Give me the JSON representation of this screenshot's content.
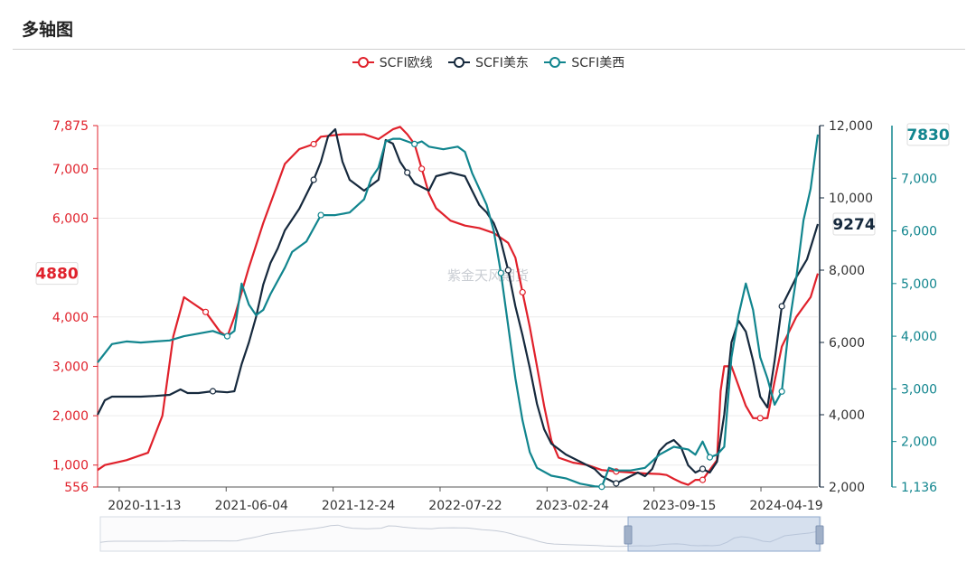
{
  "page": {
    "title": "多轴图"
  },
  "colors": {
    "eu": "#e0212b",
    "us_east": "#16293d",
    "us_west": "#11858e"
  },
  "watermark": "紫金天风期货",
  "chart_data": {
    "type": "line",
    "x_ticks": [
      "2020-11-13",
      "2021-06-04",
      "2021-12-24",
      "2022-07-22",
      "2023-02-24",
      "2023-09-15",
      "2024-04-19"
    ],
    "axes": [
      {
        "id": "eu",
        "ticks": [
          "556",
          "1,000",
          "2,000",
          "3,000",
          "4,000",
          "6,000",
          "7,000",
          "7,875"
        ],
        "min": 556,
        "max": 7875,
        "current": "4880"
      },
      {
        "id": "us_east",
        "ticks": [
          "2,000",
          "4,000",
          "6,000",
          "8,000",
          "10,000",
          "12,000"
        ],
        "min": 2000,
        "max": 12000,
        "current": "9274"
      },
      {
        "id": "us_west",
        "ticks": [
          "1,136",
          "2,000",
          "3,000",
          "4,000",
          "5,000",
          "6,000",
          "7,000"
        ],
        "min": 1136,
        "max": 8000,
        "current": "7830"
      }
    ],
    "series": [
      {
        "name": "SCFI欧线",
        "axis": "eu",
        "points": [
          [
            0,
            900
          ],
          [
            0.01,
            1000
          ],
          [
            0.04,
            1100
          ],
          [
            0.07,
            1250
          ],
          [
            0.09,
            2000
          ],
          [
            0.105,
            3600
          ],
          [
            0.12,
            4400
          ],
          [
            0.13,
            4300
          ],
          [
            0.15,
            4100
          ],
          [
            0.17,
            3700
          ],
          [
            0.18,
            3600
          ],
          [
            0.19,
            4000
          ],
          [
            0.21,
            5000
          ],
          [
            0.23,
            5900
          ],
          [
            0.245,
            6500
          ],
          [
            0.26,
            7100
          ],
          [
            0.28,
            7400
          ],
          [
            0.3,
            7500
          ],
          [
            0.31,
            7650
          ],
          [
            0.34,
            7700
          ],
          [
            0.37,
            7700
          ],
          [
            0.39,
            7600
          ],
          [
            0.41,
            7800
          ],
          [
            0.42,
            7850
          ],
          [
            0.43,
            7700
          ],
          [
            0.44,
            7500
          ],
          [
            0.45,
            7000
          ],
          [
            0.46,
            6500
          ],
          [
            0.47,
            6200
          ],
          [
            0.49,
            5950
          ],
          [
            0.51,
            5850
          ],
          [
            0.53,
            5800
          ],
          [
            0.55,
            5700
          ],
          [
            0.57,
            5500
          ],
          [
            0.58,
            5200
          ],
          [
            0.59,
            4500
          ],
          [
            0.6,
            3800
          ],
          [
            0.61,
            3000
          ],
          [
            0.62,
            2200
          ],
          [
            0.63,
            1500
          ],
          [
            0.64,
            1150
          ],
          [
            0.66,
            1050
          ],
          [
            0.68,
            1000
          ],
          [
            0.7,
            900
          ],
          [
            0.72,
            870
          ],
          [
            0.74,
            850
          ],
          [
            0.76,
            830
          ],
          [
            0.78,
            820
          ],
          [
            0.79,
            800
          ],
          [
            0.8,
            720
          ],
          [
            0.81,
            650
          ],
          [
            0.82,
            600
          ],
          [
            0.83,
            700
          ],
          [
            0.84,
            700
          ],
          [
            0.85,
            900
          ],
          [
            0.86,
            1100
          ],
          [
            0.865,
            2500
          ],
          [
            0.87,
            3000
          ],
          [
            0.88,
            3000
          ],
          [
            0.89,
            2600
          ],
          [
            0.9,
            2200
          ],
          [
            0.91,
            1950
          ],
          [
            0.92,
            1950
          ],
          [
            0.93,
            1950
          ],
          [
            0.94,
            2700
          ],
          [
            0.95,
            3400
          ],
          [
            0.97,
            4000
          ],
          [
            0.99,
            4400
          ],
          [
            1,
            4880
          ]
        ]
      },
      {
        "name": "SCFI美东",
        "axis": "us_east",
        "points": [
          [
            0,
            4000
          ],
          [
            0.01,
            4400
          ],
          [
            0.02,
            4500
          ],
          [
            0.04,
            4500
          ],
          [
            0.06,
            4500
          ],
          [
            0.08,
            4520
          ],
          [
            0.1,
            4550
          ],
          [
            0.115,
            4700
          ],
          [
            0.125,
            4600
          ],
          [
            0.14,
            4600
          ],
          [
            0.16,
            4650
          ],
          [
            0.18,
            4620
          ],
          [
            0.19,
            4650
          ],
          [
            0.2,
            5400
          ],
          [
            0.21,
            6000
          ],
          [
            0.22,
            6700
          ],
          [
            0.23,
            7600
          ],
          [
            0.24,
            8200
          ],
          [
            0.25,
            8600
          ],
          [
            0.26,
            9100
          ],
          [
            0.28,
            9700
          ],
          [
            0.3,
            10500
          ],
          [
            0.31,
            11000
          ],
          [
            0.32,
            11700
          ],
          [
            0.33,
            11900
          ],
          [
            0.34,
            11000
          ],
          [
            0.35,
            10500
          ],
          [
            0.37,
            10200
          ],
          [
            0.39,
            10500
          ],
          [
            0.4,
            11600
          ],
          [
            0.41,
            11500
          ],
          [
            0.42,
            11000
          ],
          [
            0.43,
            10700
          ],
          [
            0.44,
            10400
          ],
          [
            0.46,
            10200
          ],
          [
            0.47,
            10600
          ],
          [
            0.49,
            10700
          ],
          [
            0.51,
            10600
          ],
          [
            0.52,
            10200
          ],
          [
            0.53,
            9800
          ],
          [
            0.54,
            9600
          ],
          [
            0.55,
            9300
          ],
          [
            0.56,
            8800
          ],
          [
            0.57,
            8000
          ],
          [
            0.58,
            7000
          ],
          [
            0.59,
            6200
          ],
          [
            0.6,
            5300
          ],
          [
            0.61,
            4300
          ],
          [
            0.62,
            3600
          ],
          [
            0.63,
            3200
          ],
          [
            0.65,
            2900
          ],
          [
            0.67,
            2700
          ],
          [
            0.69,
            2500
          ],
          [
            0.7,
            2300
          ],
          [
            0.72,
            2100
          ],
          [
            0.74,
            2300
          ],
          [
            0.75,
            2400
          ],
          [
            0.76,
            2300
          ],
          [
            0.77,
            2500
          ],
          [
            0.78,
            3000
          ],
          [
            0.79,
            3200
          ],
          [
            0.8,
            3300
          ],
          [
            0.81,
            3100
          ],
          [
            0.82,
            2600
          ],
          [
            0.83,
            2400
          ],
          [
            0.84,
            2500
          ],
          [
            0.85,
            2400
          ],
          [
            0.86,
            2700
          ],
          [
            0.87,
            4000
          ],
          [
            0.88,
            6000
          ],
          [
            0.89,
            6600
          ],
          [
            0.9,
            6300
          ],
          [
            0.91,
            5500
          ],
          [
            0.92,
            4500
          ],
          [
            0.93,
            4200
          ],
          [
            0.94,
            5500
          ],
          [
            0.95,
            7000
          ],
          [
            0.97,
            7800
          ],
          [
            0.985,
            8300
          ],
          [
            1,
            9274
          ]
        ]
      },
      {
        "name": "SCFI美西",
        "axis": "us_west",
        "points": [
          [
            0,
            3500
          ],
          [
            0.02,
            3850
          ],
          [
            0.04,
            3900
          ],
          [
            0.06,
            3880
          ],
          [
            0.08,
            3900
          ],
          [
            0.1,
            3920
          ],
          [
            0.12,
            4000
          ],
          [
            0.14,
            4050
          ],
          [
            0.16,
            4100
          ],
          [
            0.18,
            4000
          ],
          [
            0.19,
            4100
          ],
          [
            0.2,
            5000
          ],
          [
            0.21,
            4600
          ],
          [
            0.22,
            4400
          ],
          [
            0.23,
            4500
          ],
          [
            0.24,
            4800
          ],
          [
            0.26,
            5300
          ],
          [
            0.27,
            5600
          ],
          [
            0.29,
            5800
          ],
          [
            0.31,
            6300
          ],
          [
            0.33,
            6300
          ],
          [
            0.35,
            6350
          ],
          [
            0.37,
            6600
          ],
          [
            0.38,
            7000
          ],
          [
            0.39,
            7200
          ],
          [
            0.4,
            7700
          ],
          [
            0.41,
            7750
          ],
          [
            0.42,
            7750
          ],
          [
            0.43,
            7700
          ],
          [
            0.44,
            7650
          ],
          [
            0.45,
            7700
          ],
          [
            0.46,
            7600
          ],
          [
            0.48,
            7550
          ],
          [
            0.5,
            7600
          ],
          [
            0.51,
            7500
          ],
          [
            0.52,
            7100
          ],
          [
            0.53,
            6800
          ],
          [
            0.54,
            6500
          ],
          [
            0.55,
            6000
          ],
          [
            0.56,
            5200
          ],
          [
            0.57,
            4200
          ],
          [
            0.58,
            3200
          ],
          [
            0.59,
            2400
          ],
          [
            0.6,
            1800
          ],
          [
            0.61,
            1500
          ],
          [
            0.63,
            1350
          ],
          [
            0.65,
            1300
          ],
          [
            0.67,
            1200
          ],
          [
            0.69,
            1150
          ],
          [
            0.7,
            1140
          ],
          [
            0.71,
            1500
          ],
          [
            0.72,
            1450
          ],
          [
            0.74,
            1450
          ],
          [
            0.76,
            1500
          ],
          [
            0.78,
            1750
          ],
          [
            0.8,
            1900
          ],
          [
            0.82,
            1850
          ],
          [
            0.83,
            1750
          ],
          [
            0.84,
            2000
          ],
          [
            0.85,
            1700
          ],
          [
            0.86,
            1750
          ],
          [
            0.87,
            1900
          ],
          [
            0.88,
            3600
          ],
          [
            0.89,
            4400
          ],
          [
            0.9,
            5000
          ],
          [
            0.91,
            4500
          ],
          [
            0.92,
            3600
          ],
          [
            0.93,
            3200
          ],
          [
            0.94,
            2700
          ],
          [
            0.95,
            2950
          ],
          [
            0.96,
            4200
          ],
          [
            0.97,
            5100
          ],
          [
            0.98,
            6200
          ],
          [
            0.99,
            6800
          ],
          [
            1,
            7830
          ]
        ]
      }
    ]
  }
}
